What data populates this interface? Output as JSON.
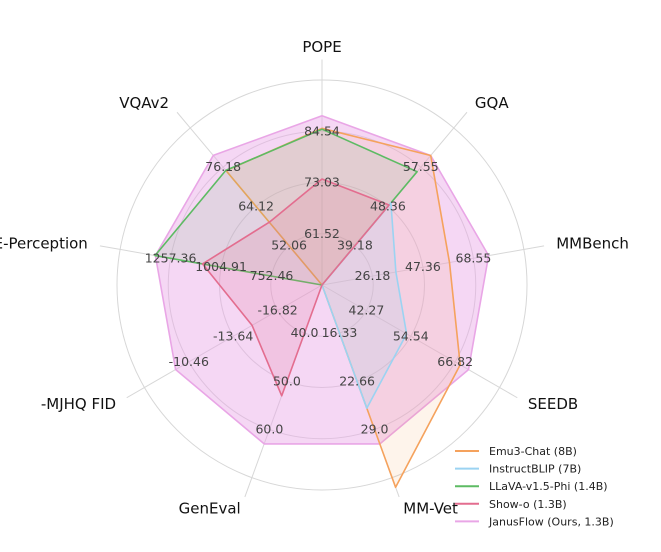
{
  "chart_data": {
    "type": "radar",
    "axes": [
      {
        "label": "POPE",
        "ticks": [
          "61.52",
          "73.03",
          "84.54"
        ],
        "min": 50.0,
        "max": 96.05
      },
      {
        "label": "GQA",
        "ticks": [
          "39.18",
          "48.36",
          "57.55"
        ],
        "min": 30.0,
        "max": 66.73
      },
      {
        "label": "MMBench",
        "ticks": [
          "26.18",
          "47.36",
          "68.55"
        ],
        "min": 5.0,
        "max": 89.73
      },
      {
        "label": "SEEDB",
        "ticks": [
          "42.27",
          "54.54",
          "66.82"
        ],
        "min": 30.0,
        "max": 79.09
      },
      {
        "label": "MM-Vet",
        "ticks": [
          "16.33",
          "22.66",
          "29.0"
        ],
        "min": 10.0,
        "max": 35.33
      },
      {
        "label": "GenEval",
        "ticks": [
          "40.0",
          "50.0",
          "60.0"
        ],
        "min": 30.0,
        "max": 70.0
      },
      {
        "label": "-MJHQ FID",
        "ticks": [
          "-16.82",
          "-13.64",
          "-10.46"
        ],
        "min": -20.0,
        "max": -7.28
      },
      {
        "label": "MME-Perception",
        "ticks": [
          "752.46",
          "1004.91",
          "1257.36"
        ],
        "min": 500.0,
        "max": 1509.81
      },
      {
        "label": "VQAv2",
        "ticks": [
          "52.06",
          "64.12",
          "76.18"
        ],
        "min": 40.0,
        "max": 88.24
      }
    ],
    "series": [
      {
        "name": "Emu3-Chat (8B)",
        "color": "#f5a25d",
        "fill": "#f5a25d",
        "fill_opacity": 0.12,
        "values": [
          85.2,
          60.3,
          58.5,
          68.2,
          37.2,
          30.0,
          -20.0,
          500.0,
          75.1
        ]
      },
      {
        "name": "InstructBLIP (7B)",
        "color": "#9bd3f2",
        "fill": "#9bd3f2",
        "fill_opacity": 0.18,
        "values": [
          50.0,
          49.2,
          36.0,
          53.4,
          26.2,
          30.0,
          -20.0,
          500.0,
          40.0
        ]
      },
      {
        "name": "LLaVA-v1.5-Phi (1.4B)",
        "color": "#5dbb63",
        "fill": "#5dbb63",
        "fill_opacity": 0.12,
        "values": [
          85.0,
          56.5,
          5.0,
          30.0,
          10.0,
          30.0,
          -20.0,
          1335.1,
          75.2
        ]
      },
      {
        "name": "Show-o (1.3B)",
        "color": "#e36d8f",
        "fill": "#e36d8f",
        "fill_opacity": 0.18,
        "values": [
          73.8,
          48.7,
          5.0,
          30.0,
          10.0,
          53.0,
          -14.99,
          1097.8,
          59.3
        ]
      },
      {
        "name": "JanusFlow (Ours, 1.3B)",
        "color": "#e9a6e6",
        "fill": "#e9a6e6",
        "fill_opacity": 0.45,
        "values": [
          88.0,
          60.3,
          74.9,
          70.5,
          30.9,
          63.0,
          -9.51,
          1333.1,
          79.8
        ]
      }
    ],
    "legend_position": "bottom-right",
    "grid": true
  }
}
